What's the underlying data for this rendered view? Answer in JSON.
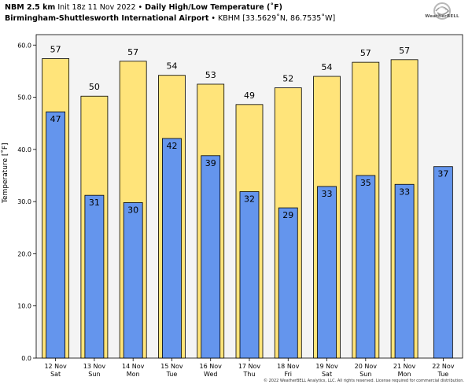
{
  "header": {
    "model": "NBM 2.5 km",
    "init": "Init 18z 11 Nov 2022",
    "title": "Daily High/Low Temperature (˚F)",
    "station": "Birmingham-Shuttlesworth International Airport",
    "station_info": "KBHM [33.5629˚N, 86.7535˚W]",
    "separator": "•"
  },
  "logo": {
    "text": "WeatherBELL",
    "icon": "swirl-logo-icon"
  },
  "footer": "© 2022 WeatherBELL Analytics, LLC. All rights reserved. License required for commercial distribution.",
  "colors": {
    "high": "#ffe47a",
    "low": "#6495ed",
    "plot_bg": "#f4f4f4"
  },
  "chart_data": {
    "type": "bar",
    "ylabel": "Temperature [˚F]",
    "ylim": [
      0,
      62
    ],
    "yticks": [
      "0.0",
      "10.0",
      "20.0",
      "30.0",
      "40.0",
      "50.0",
      "60.0"
    ],
    "categories": [
      {
        "date": "12 Nov",
        "day": "Sat"
      },
      {
        "date": "13 Nov",
        "day": "Sun"
      },
      {
        "date": "14 Nov",
        "day": "Mon"
      },
      {
        "date": "15 Nov",
        "day": "Tue"
      },
      {
        "date": "16 Nov",
        "day": "Wed"
      },
      {
        "date": "17 Nov",
        "day": "Thu"
      },
      {
        "date": "18 Nov",
        "day": "Fri"
      },
      {
        "date": "19 Nov",
        "day": "Sat"
      },
      {
        "date": "20 Nov",
        "day": "Sun"
      },
      {
        "date": "21 Nov",
        "day": "Mon"
      },
      {
        "date": "22 Nov",
        "day": "Tue"
      }
    ],
    "series": [
      {
        "name": "High",
        "values": [
          57.4,
          50.2,
          56.9,
          54.2,
          52.5,
          48.6,
          51.8,
          54.0,
          56.7,
          57.2,
          null
        ],
        "labels": [
          "57",
          "50",
          "57",
          "54",
          "53",
          "49",
          "52",
          "54",
          "57",
          "57",
          ""
        ]
      },
      {
        "name": "Low",
        "values": [
          47.2,
          31.2,
          29.8,
          42.1,
          38.8,
          31.9,
          28.8,
          32.9,
          35.0,
          33.3,
          36.7
        ],
        "labels": [
          "47",
          "31",
          "30",
          "42",
          "39",
          "32",
          "29",
          "33",
          "35",
          "33",
          "37"
        ]
      }
    ]
  }
}
